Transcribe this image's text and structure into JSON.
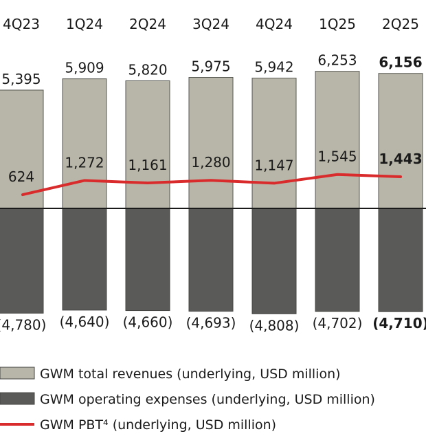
{
  "chart_data": {
    "type": "bar",
    "categories": [
      "4Q23",
      "1Q24",
      "2Q24",
      "3Q24",
      "4Q24",
      "1Q25",
      "2Q25"
    ],
    "series": [
      {
        "name": "GWM total revenues (underlying, USD million)",
        "type": "bar",
        "color": "#b8b6a8",
        "values": [
          5395,
          5909,
          5820,
          5975,
          5942,
          6253,
          6156
        ],
        "labels": [
          "5,395",
          "5,909",
          "5,820",
          "5,975",
          "5,942",
          "6,253",
          "6,156"
        ]
      },
      {
        "name": "GWM operating expenses (underlying, USD million)",
        "type": "bar",
        "color": "#5a5a58",
        "values": [
          -4780,
          -4640,
          -4660,
          -4693,
          -4808,
          -4702,
          -4710
        ],
        "labels": [
          "(4,780)",
          "(4,640)",
          "(4,660)",
          "(4,693)",
          "(4,808)",
          "(4,702)",
          "(4,710)"
        ]
      },
      {
        "name": "GWM PBT⁴ (underlying, USD million)",
        "type": "line",
        "color": "#d92b2b",
        "values": [
          624,
          1272,
          1161,
          1280,
          1147,
          1545,
          1443
        ],
        "labels": [
          "624",
          "1,272",
          "1,161",
          "1,280",
          "1,147",
          "1,545",
          "1,443"
        ]
      }
    ],
    "highlight_category": "2Q25",
    "legend_position": "bottom-left",
    "grid": false
  }
}
